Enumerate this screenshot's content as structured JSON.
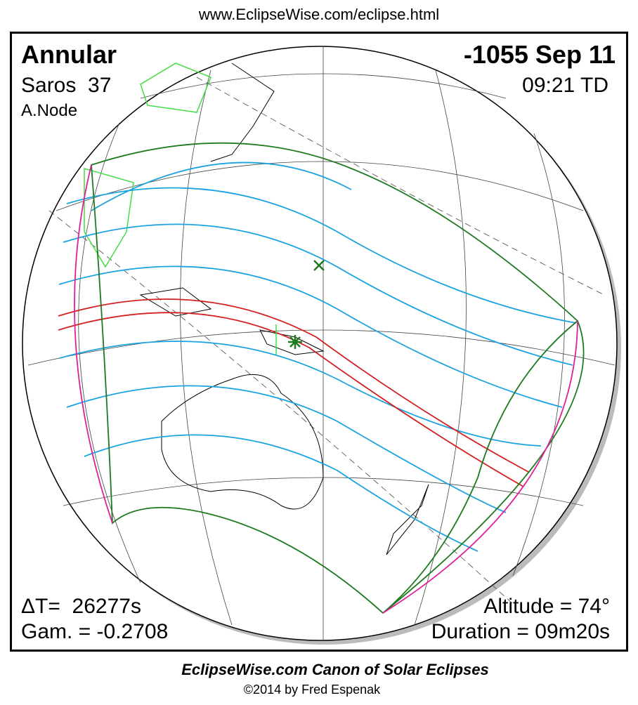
{
  "header": {
    "url": "www.EclipseWise.com/eclipse.html"
  },
  "eclipse": {
    "type": "Annular",
    "date": "-1055 Sep 11",
    "saros": "Saros  37",
    "time": "09:21 TD",
    "node": "A.Node",
    "delta_t": "ΔT=  26277s",
    "gamma": "Gam. = -0.2708",
    "altitude": "Altitude = 74°",
    "duration": "Duration = 09m20s"
  },
  "footer": {
    "title": "EclipseWise.com Canon of Solar Eclipses",
    "copyright": "©2014 by Fred Espenak"
  }
}
